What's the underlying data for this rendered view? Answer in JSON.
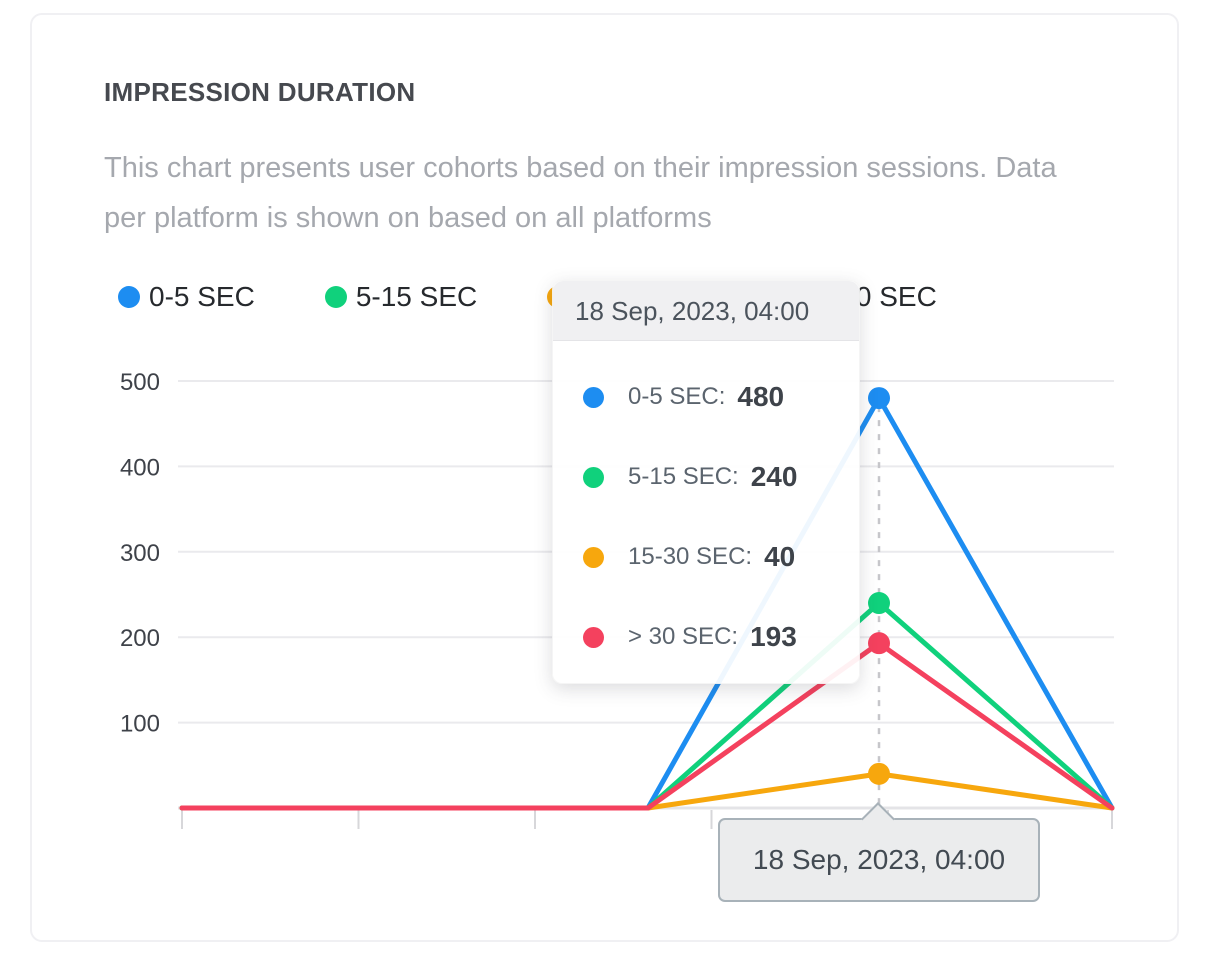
{
  "card": {
    "title": "IMPRESSION DURATION",
    "description": "This chart presents user cohorts based on their impression sessions. Data per platform is shown on based on all platforms"
  },
  "legend": {
    "items": [
      {
        "label": "0-5 SEC",
        "color": "#1d8df1"
      },
      {
        "label": "5-15 SEC",
        "color": "#10d17c"
      },
      {
        "label": "15-30 SEC",
        "color": "#f7a70d"
      },
      {
        "label": "> 30 SEC",
        "color": "#f4415e"
      }
    ]
  },
  "chart_data": {
    "type": "line",
    "title": "IMPRESSION DURATION",
    "xlabel": "",
    "ylabel": "",
    "ylim": [
      0,
      500
    ],
    "yticks": [
      100,
      200,
      300,
      400,
      500
    ],
    "grid": true,
    "legend_position": "top",
    "x_points": [
      "",
      "",
      "18 Sep, 2023, 04:00",
      ""
    ],
    "hover_index": 2,
    "hover_label": "18 Sep, 2023, 04:00",
    "series": [
      {
        "name": "0-5 SEC",
        "color": "#1d8df1",
        "values": [
          0,
          0,
          480,
          0
        ]
      },
      {
        "name": "5-15 SEC",
        "color": "#10d17c",
        "values": [
          0,
          0,
          240,
          0
        ]
      },
      {
        "name": "15-30 SEC",
        "color": "#f7a70d",
        "values": [
          0,
          0,
          40,
          0
        ]
      },
      {
        "name": "> 30 SEC",
        "color": "#f4415e",
        "values": [
          0,
          0,
          193,
          0
        ]
      }
    ]
  },
  "tooltip": {
    "title": "18 Sep, 2023, 04:00",
    "rows": [
      {
        "label": "0-5 SEC:",
        "value": "480",
        "color": "#1d8df1"
      },
      {
        "label": "5-15 SEC:",
        "value": "240",
        "color": "#10d17c"
      },
      {
        "label": "15-30 SEC:",
        "value": "40",
        "color": "#f7a70d"
      },
      {
        "label": "> 30 SEC:",
        "value": "193",
        "color": "#f4415e"
      }
    ]
  },
  "x_axis_tooltip": {
    "text": "18 Sep, 2023, 04:00"
  },
  "colors": {
    "series_blue": "#1d8df1",
    "series_green": "#10d17c",
    "series_orange": "#f7a70d",
    "series_red": "#f4415e",
    "gridline": "#eaeaed",
    "axis": "#e4e4e7",
    "dashed_guide": "#c6c6ca",
    "title_text": "#46494f",
    "description_text": "#a5a8ae",
    "y_label_text": "#3e4249"
  }
}
